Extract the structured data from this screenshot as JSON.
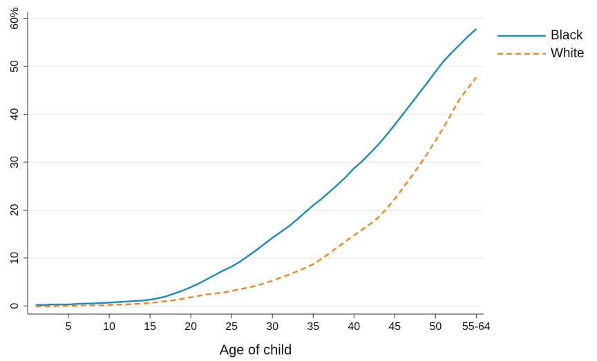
{
  "chart_data": {
    "type": "line",
    "x_label": "Age of child",
    "x": [
      1,
      2,
      3,
      4,
      5,
      6,
      7,
      8,
      9,
      10,
      11,
      12,
      13,
      14,
      15,
      16,
      17,
      18,
      19,
      20,
      21,
      22,
      23,
      24,
      25,
      26,
      27,
      28,
      29,
      30,
      31,
      32,
      33,
      34,
      35,
      36,
      37,
      38,
      39,
      40,
      41,
      42,
      43,
      44,
      45,
      46,
      47,
      48,
      49,
      50,
      51,
      52,
      53,
      54,
      55
    ],
    "series": [
      {
        "name": "Black",
        "color": "#1f8ebf",
        "line_style": "solid",
        "values": [
          0.2,
          0.2,
          0.3,
          0.3,
          0.3,
          0.4,
          0.5,
          0.5,
          0.6,
          0.7,
          0.8,
          0.9,
          1.0,
          1.1,
          1.3,
          1.6,
          2.0,
          2.6,
          3.2,
          3.9,
          4.7,
          5.6,
          6.5,
          7.4,
          8.2,
          9.2,
          10.4,
          11.6,
          12.9,
          14.2,
          15.4,
          16.6,
          18.0,
          19.5,
          21.0,
          22.3,
          23.8,
          25.3,
          26.9,
          28.7,
          30.2,
          31.9,
          33.7,
          35.7,
          37.8,
          40.0,
          42.2,
          44.4,
          46.6,
          48.9,
          51.1,
          52.9,
          54.6,
          56.3,
          57.8
        ]
      },
      {
        "name": "White",
        "color": "#f08a24",
        "line_style": "dashed",
        "values": [
          -0.1,
          -0.1,
          -0.1,
          0,
          0,
          0,
          0.1,
          0.1,
          0.1,
          0.2,
          0.3,
          0.3,
          0.4,
          0.5,
          0.6,
          0.8,
          1.0,
          1.2,
          1.5,
          1.8,
          2.1,
          2.4,
          2.6,
          2.8,
          3.1,
          3.5,
          3.8,
          4.2,
          4.7,
          5.3,
          5.9,
          6.5,
          7.2,
          7.9,
          8.7,
          9.8,
          11.0,
          12.3,
          13.5,
          14.7,
          15.9,
          17.1,
          18.5,
          20.3,
          22.3,
          24.6,
          26.9,
          29.3,
          31.8,
          34.5,
          37.3,
          40.3,
          43.3,
          45.5,
          47.7
        ]
      }
    ],
    "xlim": [
      0,
      55.9
    ],
    "xticks": [
      5,
      10,
      15,
      20,
      25,
      30,
      35,
      40,
      45,
      50,
      {
        "value": 55,
        "label": "55-64"
      }
    ],
    "ylim": [
      -1.7,
      61.4
    ],
    "yticks": [
      0,
      10,
      20,
      30,
      40,
      50,
      {
        "value": 60,
        "label": "60%"
      }
    ],
    "grid": true,
    "legend": "right"
  }
}
